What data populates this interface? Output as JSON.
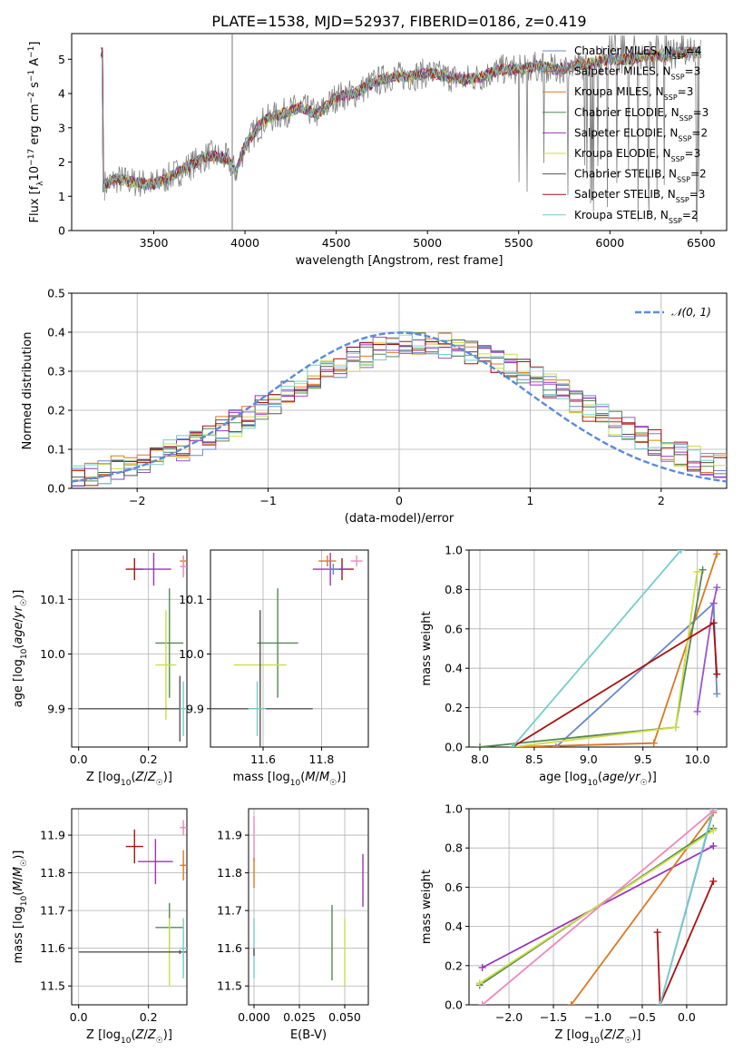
{
  "figure_title": "PLATE=1538, MJD=52937, FIBERID=0186, z=0.419",
  "legend_series": [
    {
      "name": "Chabrier MILES, N",
      "sub": "SSP",
      "tail": "=4",
      "color": "#6688cc"
    },
    {
      "name": "Salpeter MILES, N",
      "sub": "SSP",
      "tail": "=3",
      "color": "#9955cc"
    },
    {
      "name": "Kroupa MILES, N",
      "sub": "SSP",
      "tail": "=3",
      "color": "#dd7722"
    },
    {
      "name": "Chabrier ELODIE, N",
      "sub": "SSP",
      "tail": "=3",
      "color": "#558855"
    },
    {
      "name": "Salpeter ELODIE, N",
      "sub": "SSP",
      "tail": "=2",
      "color": "#9933bb"
    },
    {
      "name": "Kroupa ELODIE, N",
      "sub": "SSP",
      "tail": "=3",
      "color": "#ccdd44"
    },
    {
      "name": "Chabrier STELIB, N",
      "sub": "SSP",
      "tail": "=2",
      "color": "#555555"
    },
    {
      "name": "Salpeter STELIB, N",
      "sub": "SSP",
      "tail": "=3",
      "color": "#aa1111"
    },
    {
      "name": "Kroupa STELIB, N",
      "sub": "SSP",
      "tail": "=2",
      "color": "#77cccc"
    }
  ],
  "chart_data": [
    {
      "id": "spectrum",
      "type": "line",
      "xlabel": "wavelength [Angstrom, rest frame]",
      "ylabel": "Flux [f_λ 10^-17 erg cm^-2 s^-1 A^-1]",
      "xlim": [
        3050,
        6640
      ],
      "ylim": [
        0,
        5.75
      ],
      "xticks": [
        3500,
        4000,
        4500,
        5000,
        5500,
        6000,
        6500
      ],
      "yticks": [
        0,
        1,
        2,
        3,
        4,
        5
      ],
      "grid": false,
      "data_color": "#808080",
      "model_envelope": {
        "x": [
          3220,
          3300,
          3400,
          3500,
          3600,
          3700,
          3800,
          3900,
          3950,
          4000,
          4100,
          4200,
          4300,
          4400,
          4500,
          4600,
          4700,
          4800,
          4900,
          5000,
          5100,
          5200,
          5300,
          5400,
          5500,
          5600,
          5700,
          5800,
          5900,
          6000,
          6100,
          6200,
          6300,
          6400,
          6500
        ],
        "y": [
          1.3,
          1.5,
          1.4,
          1.35,
          1.6,
          1.9,
          2.2,
          2.1,
          1.7,
          2.5,
          3.2,
          3.4,
          3.6,
          3.4,
          3.9,
          4.0,
          4.3,
          4.5,
          4.5,
          4.6,
          4.5,
          4.4,
          4.5,
          4.7,
          4.7,
          4.8,
          4.7,
          4.8,
          4.9,
          5.0,
          5.0,
          5.1,
          5.1,
          5.2,
          5.2
        ]
      }
    },
    {
      "id": "residual_hist",
      "type": "line",
      "xlabel": "(data-model)/error",
      "ylabel": "Normed distribution",
      "xlim": [
        -2.5,
        2.5
      ],
      "ylim": [
        0,
        0.5
      ],
      "xticks": [
        -2,
        -1,
        0,
        1,
        2
      ],
      "yticks": [
        0.0,
        0.1,
        0.2,
        0.3,
        0.4,
        0.5
      ],
      "grid": true,
      "legend": "𝒩(0, 1)",
      "legend_position": "top-right",
      "gaussian_color": "#5b8bd9"
    },
    {
      "id": "age_vs_Z",
      "type": "scatter",
      "xlabel": "Z [log10(Z/Z☉)]",
      "ylabel": "age  [log10(age/yr)]",
      "xlim": [
        -0.02,
        0.31
      ],
      "ylim": [
        9.83,
        10.19
      ],
      "xticks": [
        0.0,
        0.2
      ],
      "yticks": [
        9.9,
        10.0,
        10.1
      ],
      "grid": true,
      "points": [
        {
          "x": 0.16,
          "y": 10.155,
          "xerr": 0.025,
          "yerr": 0.02,
          "color": "#aa1111"
        },
        {
          "x": 0.215,
          "y": 10.155,
          "xerr": 0.05,
          "yerr": 0.03,
          "color": "#9933bb"
        },
        {
          "x": 0.3,
          "y": 10.17,
          "xerr": 0.01,
          "yerr": 0.01,
          "color": "#dd7722"
        },
        {
          "x": 0.3,
          "y": 10.16,
          "xerr": 0.01,
          "yerr": 0.02,
          "color": "#ee88bb"
        },
        {
          "x": 0.26,
          "y": 10.02,
          "xerr": 0.04,
          "yerr": 0.1,
          "color": "#558855"
        },
        {
          "x": 0.25,
          "y": 9.98,
          "xerr": 0.03,
          "yerr": 0.1,
          "color": "#ccdd44"
        },
        {
          "x": 0.29,
          "y": 9.9,
          "xerr": 0.29,
          "yerr": 0.06,
          "color": "#555555"
        },
        {
          "x": 0.3,
          "y": 9.9,
          "xerr": 0.01,
          "yerr": 0.05,
          "color": "#77cccc"
        }
      ]
    },
    {
      "id": "age_vs_mass",
      "type": "scatter",
      "xlabel": "mass [log10(M/M☉)]",
      "ylabel": "",
      "xlim": [
        11.42,
        11.96
      ],
      "ylim": [
        9.83,
        10.19
      ],
      "xticks": [
        11.6,
        11.8
      ],
      "yticks": [
        9.9,
        10.0,
        10.1
      ],
      "grid": true,
      "points": [
        {
          "x": 11.87,
          "y": 10.155,
          "xerr": 0.04,
          "yerr": 0.02,
          "color": "#aa1111"
        },
        {
          "x": 11.83,
          "y": 10.155,
          "xerr": 0.06,
          "yerr": 0.03,
          "color": "#9933bb"
        },
        {
          "x": 11.82,
          "y": 10.17,
          "xerr": 0.03,
          "yerr": 0.01,
          "color": "#dd7722"
        },
        {
          "x": 11.92,
          "y": 10.17,
          "xerr": 0.02,
          "yerr": 0.01,
          "color": "#ee88bb"
        },
        {
          "x": 11.65,
          "y": 10.02,
          "xerr": 0.07,
          "yerr": 0.1,
          "color": "#558855"
        },
        {
          "x": 11.59,
          "y": 9.98,
          "xerr": 0.09,
          "yerr": 0.1,
          "color": "#ccdd44"
        },
        {
          "x": 11.59,
          "y": 9.9,
          "xerr": 0.18,
          "yerr": 0.18,
          "color": "#555555"
        },
        {
          "x": 11.58,
          "y": 9.9,
          "xerr": 0.03,
          "yerr": 0.05,
          "color": "#77cccc"
        },
        {
          "x": 11.84,
          "y": 10.155,
          "xerr": 0.02,
          "yerr": 0.01,
          "color": "#6688cc"
        }
      ]
    },
    {
      "id": "massweight_vs_age",
      "type": "line",
      "xlabel": "age  [log10(age/yr)]",
      "ylabel": "mass weight",
      "xlim": [
        7.9,
        10.27
      ],
      "ylim": [
        0,
        1
      ],
      "xticks": [
        8.0,
        8.5,
        9.0,
        9.5,
        10.0
      ],
      "yticks": [
        0.0,
        0.2,
        0.4,
        0.6,
        0.8,
        1.0
      ],
      "grid": true,
      "series": [
        {
          "name": "Chabrier MILES",
          "color": "#6688cc",
          "x": [
            8.7,
            10.15,
            10.18
          ],
          "y": [
            0.0,
            0.73,
            0.27
          ]
        },
        {
          "name": "Salpeter MILES",
          "color": "#9955cc",
          "x": [
            10.0,
            10.15,
            10.18
          ],
          "y": [
            0.18,
            0.73,
            0.81
          ]
        },
        {
          "name": "Kroupa MILES",
          "color": "#dd7722",
          "x": [
            8.3,
            9.6,
            10.18
          ],
          "y": [
            0.0,
            0.02,
            0.98
          ]
        },
        {
          "name": "Chabrier ELODIE",
          "color": "#558855",
          "x": [
            8.0,
            9.8,
            10.05
          ],
          "y": [
            0.0,
            0.1,
            0.9
          ]
        },
        {
          "name": "Kroupa ELODIE",
          "color": "#ccdd44",
          "x": [
            8.3,
            9.8,
            10.0
          ],
          "y": [
            0.0,
            0.1,
            0.89
          ]
        },
        {
          "name": "Salpeter STELIB",
          "color": "#aa1111",
          "x": [
            8.3,
            10.15,
            10.18
          ],
          "y": [
            0.0,
            0.63,
            0.37
          ]
        },
        {
          "name": "Kroupa STELIB",
          "color": "#77cccc",
          "x": [
            8.3,
            9.85
          ],
          "y": [
            0.0,
            1.0
          ]
        }
      ]
    },
    {
      "id": "mass_vs_Z",
      "type": "scatter",
      "xlabel": "Z [log10(Z/Z☉)]",
      "ylabel": "mass [log10(M/M☉)]",
      "xlim": [
        -0.02,
        0.31
      ],
      "ylim": [
        11.45,
        11.97
      ],
      "xticks": [
        0.0,
        0.2
      ],
      "yticks": [
        11.5,
        11.6,
        11.7,
        11.8,
        11.9
      ],
      "grid": true,
      "points": [
        {
          "x": 0.16,
          "y": 11.87,
          "xerr": 0.025,
          "yerr": 0.045,
          "color": "#aa1111"
        },
        {
          "x": 0.22,
          "y": 11.83,
          "xerr": 0.05,
          "yerr": 0.06,
          "color": "#9933bb"
        },
        {
          "x": 0.3,
          "y": 11.92,
          "xerr": 0.01,
          "yerr": 0.02,
          "color": "#ee88bb"
        },
        {
          "x": 0.3,
          "y": 11.82,
          "xerr": 0.01,
          "yerr": 0.04,
          "color": "#dd7722"
        },
        {
          "x": 0.26,
          "y": 11.655,
          "xerr": 0.04,
          "yerr": 0.065,
          "color": "#558855"
        },
        {
          "x": 0.26,
          "y": 11.59,
          "xerr": 0.03,
          "yerr": 0.09,
          "color": "#ccdd44"
        },
        {
          "x": 0.29,
          "y": 11.59,
          "xerr": 0.29,
          "yerr": 0.005,
          "color": "#555555"
        },
        {
          "x": 0.3,
          "y": 11.6,
          "xerr": 0.01,
          "yerr": 0.08,
          "color": "#77cccc"
        }
      ]
    },
    {
      "id": "mass_vs_ebv",
      "type": "scatter",
      "xlabel": "E(B-V)",
      "ylabel": "",
      "xlim": [
        -0.003,
        0.063
      ],
      "ylim": [
        11.45,
        11.97
      ],
      "xticks": [
        0.0,
        0.025,
        0.05
      ],
      "yticks": [
        11.5,
        11.6,
        11.7,
        11.8,
        11.9
      ],
      "grid": true,
      "points": [
        {
          "x": 0.0,
          "y": 11.89,
          "xerr": 0.0,
          "yerr": 0.06,
          "color": "#ee88bb"
        },
        {
          "x": 0.0,
          "y": 11.8,
          "xerr": 0.0,
          "yerr": 0.04,
          "color": "#dd7722"
        },
        {
          "x": 0.0,
          "y": 11.6,
          "xerr": 0.0,
          "yerr": 0.08,
          "color": "#77cccc"
        },
        {
          "x": 0.0,
          "y": 11.59,
          "xerr": 0.0,
          "yerr": 0.01,
          "color": "#555555"
        },
        {
          "x": 0.043,
          "y": 11.615,
          "xerr": 0.0,
          "yerr": 0.1,
          "color": "#558855"
        },
        {
          "x": 0.05,
          "y": 11.59,
          "xerr": 0.0,
          "yerr": 0.09,
          "color": "#ccdd44"
        },
        {
          "x": 0.06,
          "y": 11.78,
          "xerr": 0.0,
          "yerr": 0.07,
          "color": "#9933bb"
        }
      ]
    },
    {
      "id": "massweight_vs_Z",
      "type": "line",
      "xlabel": "Z [log10(Z/Z☉)]",
      "ylabel": "mass weight",
      "xlim": [
        -2.45,
        0.45
      ],
      "ylim": [
        0,
        1
      ],
      "xticks": [
        -2.0,
        -1.5,
        -1.0,
        -0.5,
        0.0
      ],
      "yticks": [
        0.0,
        0.2,
        0.4,
        0.6,
        0.8,
        1.0
      ],
      "grid": true,
      "series": [
        {
          "name": "Chabrier MILES",
          "color": "#6688cc",
          "x": [
            -0.3,
            0.3
          ],
          "y": [
            0.0,
            0.99
          ]
        },
        {
          "name": "Salpeter MILES",
          "color": "#9933bb",
          "x": [
            -2.3,
            0.3
          ],
          "y": [
            0.19,
            0.81
          ]
        },
        {
          "name": "Kroupa MILES",
          "color": "#dd7722",
          "x": [
            -1.3,
            0.3
          ],
          "y": [
            0.0,
            0.98
          ]
        },
        {
          "name": "Chabrier ELODIE",
          "color": "#558855",
          "x": [
            -2.33,
            0.3
          ],
          "y": [
            0.1,
            0.9
          ]
        },
        {
          "name": "Kroupa ELODIE",
          "color": "#ccdd44",
          "x": [
            -2.33,
            0.3
          ],
          "y": [
            0.11,
            0.89
          ]
        },
        {
          "name": "Salpeter STELIB",
          "color": "#aa1111",
          "x": [
            -0.33,
            -0.3,
            0.3
          ],
          "y": [
            0.37,
            0.0,
            0.63
          ]
        },
        {
          "name": "Kroupa STELIB",
          "color": "#77cccc",
          "x": [
            -0.3,
            0.3
          ],
          "y": [
            0.0,
            1.0
          ]
        },
        {
          "name": "Pink",
          "color": "#ee88bb",
          "x": [
            -2.3,
            0.3
          ],
          "y": [
            0.0,
            0.99
          ]
        }
      ]
    }
  ]
}
